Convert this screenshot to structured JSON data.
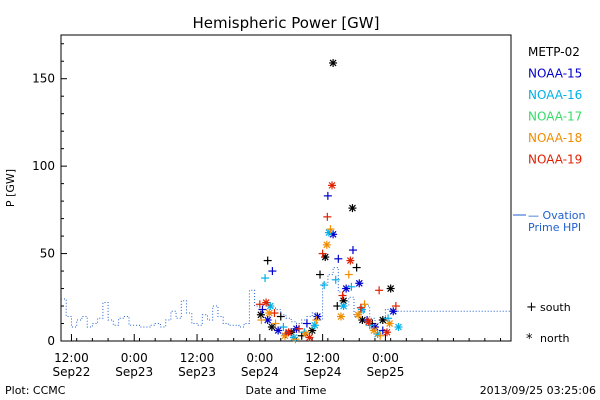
{
  "chart_data": {
    "type": "scatter",
    "title": "Hemispheric Power [GW]",
    "ylabel": "P [GW]",
    "xlabel": "Date and Time",
    "ylim": [
      0,
      175
    ],
    "xlim_hours": [
      -14,
      72
    ],
    "yticks": [
      0,
      50,
      100,
      150
    ],
    "xticks": [
      {
        "t": "12:00",
        "d": "Sep22"
      },
      {
        "t": "0:00",
        "d": "Sep23"
      },
      {
        "t": "12:00",
        "d": "Sep23"
      },
      {
        "t": "0:00",
        "d": "Sep24"
      },
      {
        "t": "12:00",
        "d": "Sep24"
      },
      {
        "t": "0:00",
        "d": "Sep25"
      }
    ],
    "xtick_hours": [
      -12,
      0,
      12,
      24,
      36,
      48
    ],
    "legend": [
      {
        "name": "METP-02",
        "color": "#000000"
      },
      {
        "name": "NOAA-15",
        "color": "#0000cc"
      },
      {
        "name": "NOAA-16",
        "color": "#00b0e8"
      },
      {
        "name": "NOAA-17",
        "color": "#33dd66"
      },
      {
        "name": "NOAA-18",
        "color": "#f08c00"
      },
      {
        "name": "NOAA-19",
        "color": "#e02000"
      }
    ],
    "ovation_label": [
      "— Ovation",
      "Prime HPI"
    ],
    "ovation_color": "#1f5fd0",
    "ovation": {
      "t": [
        -14,
        -13,
        -12,
        -11,
        -10,
        -9,
        -8,
        -7,
        -6,
        -5,
        -4,
        -3,
        -2,
        -1,
        0,
        1,
        2,
        3,
        4,
        5,
        6,
        7,
        8,
        9,
        10,
        11,
        12,
        13,
        14,
        15,
        16,
        17,
        18,
        19,
        20,
        21,
        22,
        23,
        24,
        25,
        26,
        27,
        28,
        29,
        30,
        31,
        32,
        33,
        34,
        35,
        36,
        37,
        38,
        39,
        40,
        41,
        42,
        43,
        44,
        45,
        46,
        47,
        48,
        49,
        50
      ],
      "v": [
        24,
        14,
        8,
        12,
        14,
        8,
        10,
        13,
        22,
        12,
        9,
        13,
        14,
        9,
        9,
        8,
        8,
        9,
        10,
        8,
        12,
        17,
        13,
        23,
        16,
        10,
        9,
        15,
        12,
        20,
        14,
        10,
        9,
        9,
        8,
        10,
        29,
        20,
        21,
        21,
        19,
        18,
        15,
        13,
        11,
        10,
        12,
        14,
        16,
        12,
        33,
        38,
        42,
        28,
        20,
        25,
        14,
        16,
        20,
        13,
        10,
        12,
        18,
        17,
        17
      ]
    },
    "series_markers": [
      {
        "symbol": "+",
        "meaning": "south"
      },
      {
        "symbol": "*",
        "meaning": "north"
      }
    ],
    "points": [
      {
        "s": "METP-02",
        "m": "*",
        "t": 24.2,
        "v": 15
      },
      {
        "s": "METP-02",
        "m": "+",
        "t": 25.5,
        "v": 46
      },
      {
        "s": "METP-02",
        "m": "*",
        "t": 26.3,
        "v": 8
      },
      {
        "s": "METP-02",
        "m": "+",
        "t": 28.0,
        "v": 14
      },
      {
        "s": "METP-02",
        "m": "*",
        "t": 30.0,
        "v": 5
      },
      {
        "s": "METP-02",
        "m": "+",
        "t": 32.0,
        "v": 3
      },
      {
        "s": "METP-02",
        "m": "*",
        "t": 34.0,
        "v": 6
      },
      {
        "s": "METP-02",
        "m": "+",
        "t": 35.5,
        "v": 38
      },
      {
        "s": "METP-02",
        "m": "*",
        "t": 36.5,
        "v": 48
      },
      {
        "s": "METP-02",
        "m": "*",
        "t": 38.0,
        "v": 159
      },
      {
        "s": "METP-02",
        "m": "+",
        "t": 38.8,
        "v": 20
      },
      {
        "s": "METP-02",
        "m": "*",
        "t": 40.0,
        "v": 23
      },
      {
        "s": "METP-02",
        "m": "*",
        "t": 41.7,
        "v": 76
      },
      {
        "s": "METP-02",
        "m": "+",
        "t": 42.5,
        "v": 42
      },
      {
        "s": "METP-02",
        "m": "*",
        "t": 43.6,
        "v": 12
      },
      {
        "s": "METP-02",
        "m": "+",
        "t": 45.5,
        "v": 10
      },
      {
        "s": "METP-02",
        "m": "*",
        "t": 47.5,
        "v": 12
      },
      {
        "s": "METP-02",
        "m": "*",
        "t": 49.0,
        "v": 30
      },
      {
        "s": "NOAA-15",
        "m": "+",
        "t": 24.5,
        "v": 18
      },
      {
        "s": "NOAA-15",
        "m": "*",
        "t": 25.5,
        "v": 12
      },
      {
        "s": "NOAA-15",
        "m": "+",
        "t": 26.4,
        "v": 40
      },
      {
        "s": "NOAA-15",
        "m": "*",
        "t": 27.5,
        "v": 6
      },
      {
        "s": "NOAA-15",
        "m": "+",
        "t": 29.0,
        "v": 4
      },
      {
        "s": "NOAA-15",
        "m": "*",
        "t": 31.0,
        "v": 7
      },
      {
        "s": "NOAA-15",
        "m": "+",
        "t": 33.0,
        "v": 10
      },
      {
        "s": "NOAA-15",
        "m": "*",
        "t": 35.0,
        "v": 14
      },
      {
        "s": "NOAA-15",
        "m": "+",
        "t": 37.0,
        "v": 83
      },
      {
        "s": "NOAA-15",
        "m": "*",
        "t": 38.0,
        "v": 61
      },
      {
        "s": "NOAA-15",
        "m": "+",
        "t": 39.0,
        "v": 47
      },
      {
        "s": "NOAA-15",
        "m": "*",
        "t": 40.5,
        "v": 30
      },
      {
        "s": "NOAA-15",
        "m": "+",
        "t": 41.8,
        "v": 52
      },
      {
        "s": "NOAA-15",
        "m": "*",
        "t": 43.0,
        "v": 33
      },
      {
        "s": "NOAA-15",
        "m": "+",
        "t": 44.5,
        "v": 12
      },
      {
        "s": "NOAA-15",
        "m": "*",
        "t": 46.0,
        "v": 8
      },
      {
        "s": "NOAA-15",
        "m": "+",
        "t": 47.5,
        "v": 6
      },
      {
        "s": "NOAA-15",
        "m": "*",
        "t": 49.5,
        "v": 17
      },
      {
        "s": "NOAA-16",
        "m": "+",
        "t": 25.0,
        "v": 36
      },
      {
        "s": "NOAA-16",
        "m": "*",
        "t": 26.0,
        "v": 20
      },
      {
        "s": "NOAA-16",
        "m": "+",
        "t": 28.5,
        "v": 8
      },
      {
        "s": "NOAA-16",
        "m": "*",
        "t": 30.5,
        "v": 2
      },
      {
        "s": "NOAA-16",
        "m": "+",
        "t": 32.5,
        "v": 5
      },
      {
        "s": "NOAA-16",
        "m": "*",
        "t": 34.5,
        "v": 9
      },
      {
        "s": "NOAA-16",
        "m": "+",
        "t": 36.3,
        "v": 32
      },
      {
        "s": "NOAA-16",
        "m": "*",
        "t": 37.2,
        "v": 62
      },
      {
        "s": "NOAA-16",
        "m": "+",
        "t": 38.5,
        "v": 35
      },
      {
        "s": "NOAA-16",
        "m": "*",
        "t": 40.0,
        "v": 20
      },
      {
        "s": "NOAA-16",
        "m": "+",
        "t": 41.5,
        "v": 31
      },
      {
        "s": "NOAA-16",
        "m": "*",
        "t": 43.5,
        "v": 18
      },
      {
        "s": "NOAA-16",
        "m": "+",
        "t": 45.0,
        "v": 9
      },
      {
        "s": "NOAA-16",
        "m": "*",
        "t": 46.5,
        "v": 4
      },
      {
        "s": "NOAA-16",
        "m": "+",
        "t": 48.5,
        "v": 13
      },
      {
        "s": "NOAA-16",
        "m": "*",
        "t": 50.5,
        "v": 8
      },
      {
        "s": "NOAA-18",
        "m": "+",
        "t": 24.3,
        "v": 12
      },
      {
        "s": "NOAA-18",
        "m": "*",
        "t": 25.8,
        "v": 16
      },
      {
        "s": "NOAA-18",
        "m": "+",
        "t": 27.0,
        "v": 10
      },
      {
        "s": "NOAA-18",
        "m": "*",
        "t": 28.8,
        "v": 3
      },
      {
        "s": "NOAA-18",
        "m": "+",
        "t": 30.8,
        "v": 1
      },
      {
        "s": "NOAA-18",
        "m": "*",
        "t": 32.8,
        "v": 4
      },
      {
        "s": "NOAA-18",
        "m": "+",
        "t": 34.8,
        "v": 12
      },
      {
        "s": "NOAA-18",
        "m": "*",
        "t": 36.8,
        "v": 55
      },
      {
        "s": "NOAA-18",
        "m": "+",
        "t": 37.5,
        "v": 64
      },
      {
        "s": "NOAA-18",
        "m": "*",
        "t": 39.5,
        "v": 14
      },
      {
        "s": "NOAA-18",
        "m": "+",
        "t": 41.0,
        "v": 38
      },
      {
        "s": "NOAA-18",
        "m": "*",
        "t": 42.8,
        "v": 15
      },
      {
        "s": "NOAA-18",
        "m": "+",
        "t": 44.0,
        "v": 21
      },
      {
        "s": "NOAA-18",
        "m": "*",
        "t": 45.8,
        "v": 6
      },
      {
        "s": "NOAA-18",
        "m": "+",
        "t": 47.0,
        "v": 3
      },
      {
        "s": "NOAA-18",
        "m": "*",
        "t": 48.8,
        "v": 10
      },
      {
        "s": "NOAA-19",
        "m": "+",
        "t": 24.0,
        "v": 21
      },
      {
        "s": "NOAA-19",
        "m": "*",
        "t": 25.2,
        "v": 22
      },
      {
        "s": "NOAA-19",
        "m": "+",
        "t": 26.8,
        "v": 16
      },
      {
        "s": "NOAA-19",
        "m": "*",
        "t": 29.5,
        "v": 5
      },
      {
        "s": "NOAA-19",
        "m": "+",
        "t": 31.5,
        "v": 7
      },
      {
        "s": "NOAA-19",
        "m": "*",
        "t": 33.5,
        "v": 2
      },
      {
        "s": "NOAA-19",
        "m": "+",
        "t": 36.0,
        "v": 50
      },
      {
        "s": "NOAA-19",
        "m": "+",
        "t": 36.9,
        "v": 71
      },
      {
        "s": "NOAA-19",
        "m": "*",
        "t": 37.8,
        "v": 89
      },
      {
        "s": "NOAA-19",
        "m": "+",
        "t": 39.8,
        "v": 26
      },
      {
        "s": "NOAA-19",
        "m": "*",
        "t": 41.3,
        "v": 46
      },
      {
        "s": "NOAA-19",
        "m": "+",
        "t": 43.3,
        "v": 19
      },
      {
        "s": "NOAA-19",
        "m": "*",
        "t": 44.8,
        "v": 11
      },
      {
        "s": "NOAA-19",
        "m": "+",
        "t": 46.8,
        "v": 29
      },
      {
        "s": "NOAA-19",
        "m": "*",
        "t": 48.3,
        "v": 5
      },
      {
        "s": "NOAA-19",
        "m": "+",
        "t": 50.0,
        "v": 20
      }
    ]
  },
  "footer": {
    "left": "Plot: CCMC",
    "center": "Date and Time",
    "right": "2013/09/25 03:25:06"
  },
  "symbol_legend": {
    "south_symbol": "+",
    "south_label": "south",
    "north_symbol": "*",
    "north_label": "north"
  }
}
